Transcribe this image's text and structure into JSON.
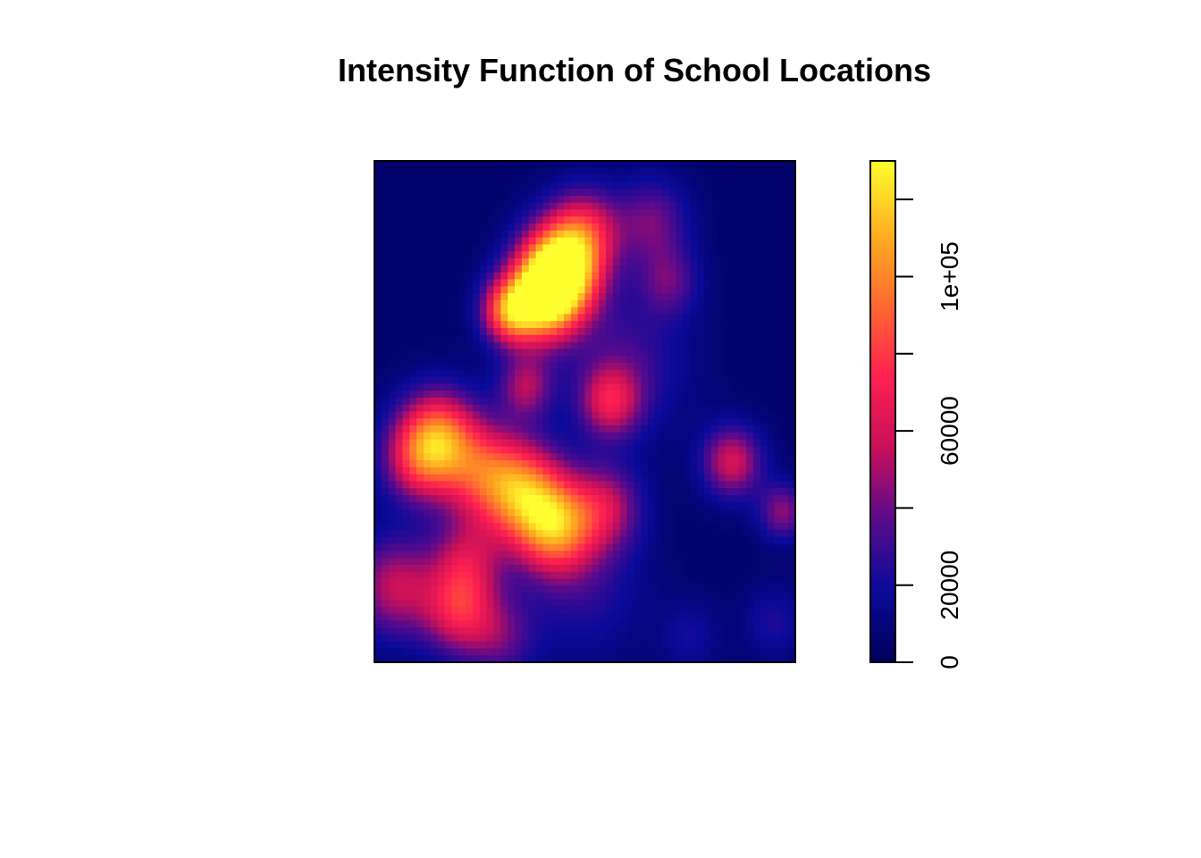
{
  "chart_data": {
    "type": "heatmap",
    "title": "Intensity Function of School Locations",
    "xlabel": "",
    "ylabel": "",
    "value_range": [
      0,
      130000
    ],
    "colorbar": {
      "ticks": [
        {
          "value": 0,
          "label": "0"
        },
        {
          "value": 20000,
          "label": "20000"
        },
        {
          "value": 40000,
          "label": ""
        },
        {
          "value": 60000,
          "label": "60000"
        },
        {
          "value": 80000,
          "label": ""
        },
        {
          "value": 100000,
          "label": "1e+05"
        },
        {
          "value": 120000,
          "label": ""
        }
      ],
      "palette": [
        "#00005a",
        "#0a0a9a",
        "#5a0a8c",
        "#c8105a",
        "#ff2050",
        "#ff6a30",
        "#ffb020",
        "#ffff30"
      ]
    },
    "hotspots": [
      {
        "x": 0.44,
        "y": 0.78,
        "peak": 130000,
        "spread": 0.065
      },
      {
        "x": 0.4,
        "y": 0.72,
        "peak": 90000,
        "spread": 0.06
      },
      {
        "x": 0.32,
        "y": 0.7,
        "peak": 80000,
        "spread": 0.045
      },
      {
        "x": 0.5,
        "y": 0.86,
        "peak": 55000,
        "spread": 0.06
      },
      {
        "x": 0.66,
        "y": 0.88,
        "peak": 35000,
        "spread": 0.06
      },
      {
        "x": 0.7,
        "y": 0.76,
        "peak": 30000,
        "spread": 0.05
      },
      {
        "x": 0.36,
        "y": 0.55,
        "peak": 45000,
        "spread": 0.045
      },
      {
        "x": 0.56,
        "y": 0.52,
        "peak": 52000,
        "spread": 0.05
      },
      {
        "x": 0.15,
        "y": 0.45,
        "peak": 80000,
        "spread": 0.065
      },
      {
        "x": 0.1,
        "y": 0.4,
        "peak": 45000,
        "spread": 0.06
      },
      {
        "x": 0.35,
        "y": 0.34,
        "peak": 80000,
        "spread": 0.07
      },
      {
        "x": 0.43,
        "y": 0.27,
        "peak": 85000,
        "spread": 0.065
      },
      {
        "x": 0.55,
        "y": 0.31,
        "peak": 45000,
        "spread": 0.06
      },
      {
        "x": 0.25,
        "y": 0.38,
        "peak": 55000,
        "spread": 0.07
      },
      {
        "x": 0.85,
        "y": 0.4,
        "peak": 55000,
        "spread": 0.05
      },
      {
        "x": 0.97,
        "y": 0.3,
        "peak": 40000,
        "spread": 0.04
      },
      {
        "x": 0.05,
        "y": 0.15,
        "peak": 50000,
        "spread": 0.07
      },
      {
        "x": 0.2,
        "y": 0.1,
        "peak": 55000,
        "spread": 0.06
      },
      {
        "x": 0.22,
        "y": 0.2,
        "peak": 45000,
        "spread": 0.06
      },
      {
        "x": 0.3,
        "y": 0.05,
        "peak": 30000,
        "spread": 0.06
      },
      {
        "x": 0.75,
        "y": 0.05,
        "peak": 15000,
        "spread": 0.05
      },
      {
        "x": 0.95,
        "y": 0.08,
        "peak": 18000,
        "spread": 0.05
      },
      {
        "x": 0.6,
        "y": 0.6,
        "peak": 25000,
        "spread": 0.1
      },
      {
        "x": 0.5,
        "y": 0.15,
        "peak": 20000,
        "spread": 0.1
      }
    ]
  }
}
